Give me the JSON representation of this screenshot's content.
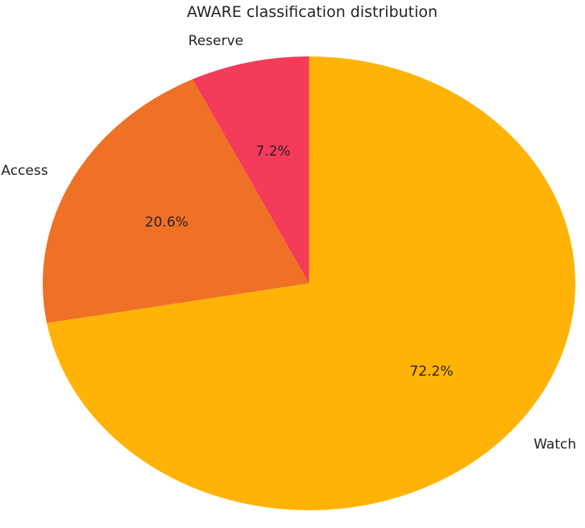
{
  "chart_data": {
    "type": "pie",
    "title": "AWARE classification distribution",
    "categories": [
      "Watch",
      "Access",
      "Reserve"
    ],
    "values": [
      72.2,
      20.6,
      7.2
    ],
    "slices": [
      {
        "label": "Watch",
        "value": 72.2,
        "pct_label": "72.2%",
        "color": "#ffb306"
      },
      {
        "label": "Access",
        "value": 20.6,
        "pct_label": "20.6%",
        "color": "#ef7125"
      },
      {
        "label": "Reserve",
        "value": 7.2,
        "pct_label": "7.2%",
        "color": "#f43b59"
      }
    ],
    "start_angle_deg": 90,
    "direction": "clockwise",
    "pct_distance": 0.6,
    "label_distance": 1.1,
    "legend_position": "none",
    "grid": false,
    "text_color": "#272222",
    "background_color": "#ffffff"
  }
}
